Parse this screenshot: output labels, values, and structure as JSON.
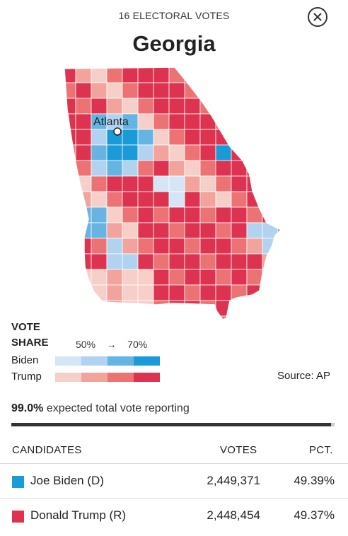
{
  "header": {
    "electoral_votes": "16 ELECTORAL VOTES",
    "state": "Georgia",
    "close_icon": "close-icon"
  },
  "map": {
    "city_label": "Atlanta",
    "colors": {
      "biden_light": "#d4e6f6",
      "biden_mid1": "#b1d3ef",
      "biden_mid2": "#66b4e2",
      "biden_dark": "#1a9bd7",
      "trump_light": "#f7cfc9",
      "trump_mid1": "#f2a39b",
      "trump_mid2": "#ec7273",
      "trump_dark": "#dd3350"
    }
  },
  "legend": {
    "title_line1": "VOTE",
    "title_line2": "SHARE",
    "scale_low": "50%",
    "scale_arrow": "→",
    "scale_high": "70%",
    "biden_label": "Biden",
    "trump_label": "Trump",
    "biden_colors": [
      "#d4e6f6",
      "#b1d3ef",
      "#66b4e2",
      "#1a9bd7"
    ],
    "trump_colors": [
      "#f7cfc9",
      "#f2a39b",
      "#ec7273",
      "#dd3350"
    ]
  },
  "source": "Source: AP",
  "reporting": {
    "percent": "99.0%",
    "text": " expected total vote reporting",
    "fraction": 0.99
  },
  "table": {
    "headers": {
      "candidates": "CANDIDATES",
      "votes": "VOTES",
      "pct": "PCT."
    },
    "rows": [
      {
        "name": "Joe Biden (D)",
        "votes": "2,449,371",
        "pct": "49.39%",
        "color": "#1a9bd7"
      },
      {
        "name": "Donald Trump (R)",
        "votes": "2,448,454",
        "pct": "49.37%",
        "color": "#dd3350"
      }
    ]
  }
}
